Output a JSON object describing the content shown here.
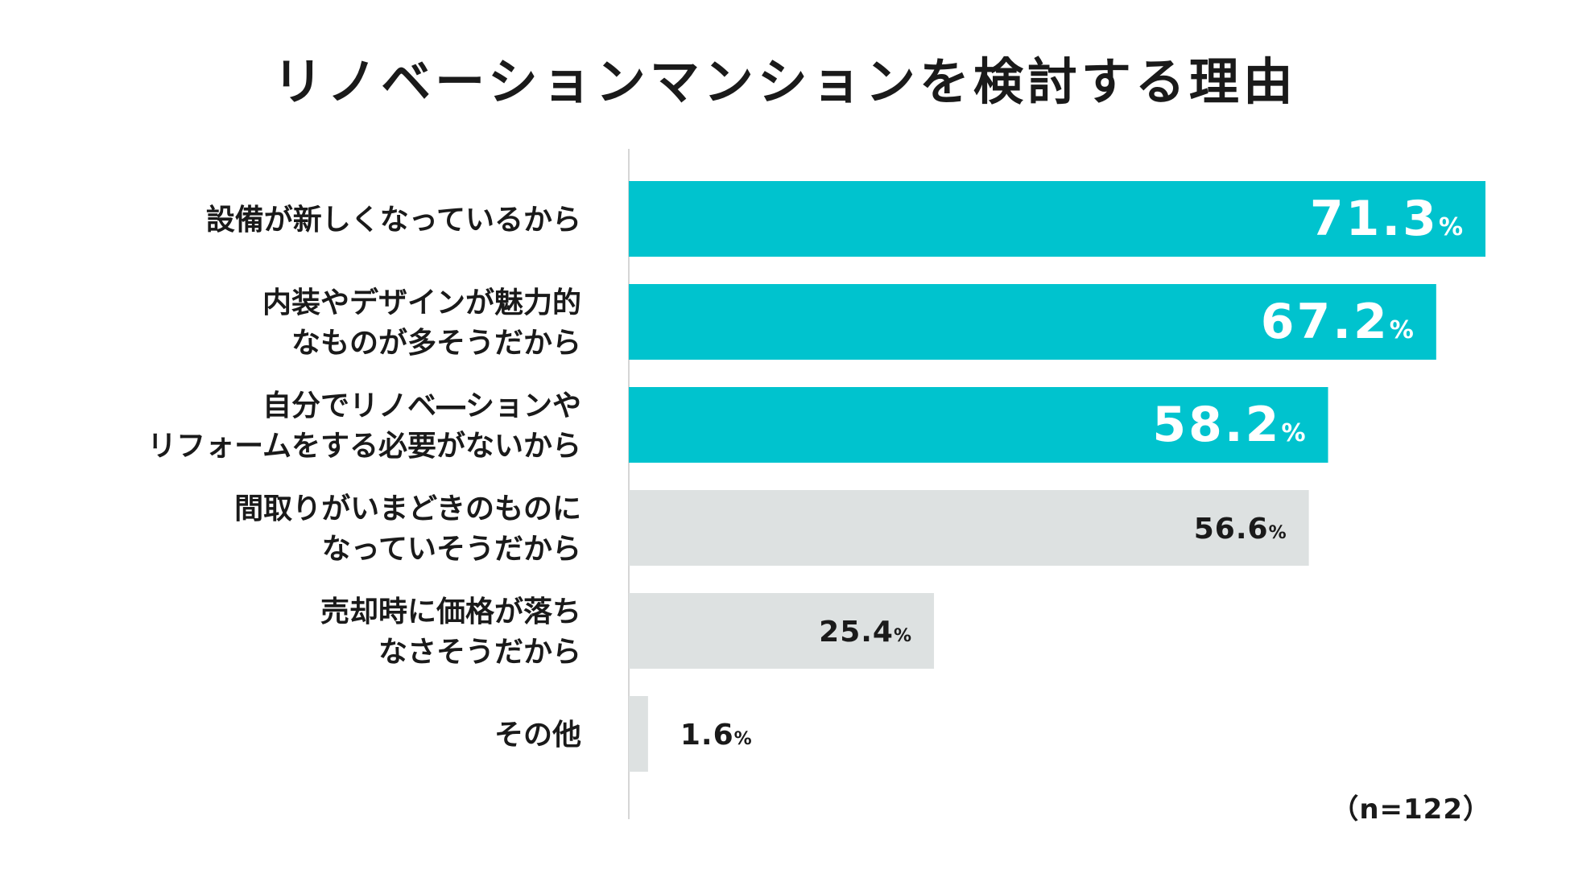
{
  "chart_data": {
    "type": "bar",
    "orientation": "horizontal",
    "title": "リノベーションマンションを検討する理由",
    "categories": [
      "設備が新しくなっているから",
      "内装やデザインが魅力的\nなものが多そうだから",
      "自分でリノベ―ションや\nリフォームをする必要がないから",
      "間取りがいまどきのものに\nなっていそうだから",
      "売却時に価格が落ち\nなさそうだから",
      "その他"
    ],
    "values": [
      71.3,
      67.2,
      58.2,
      56.6,
      25.4,
      1.6
    ],
    "unit": "%",
    "highlighted": [
      true,
      true,
      true,
      false,
      false,
      false
    ],
    "xlim": [
      0,
      71.3
    ],
    "grid": false,
    "legend": "none",
    "note": "（n=122）",
    "colors": {
      "highlight": "#00c3ce",
      "normal": "#dde1e1",
      "axis": "#d6d6d6",
      "highlight_text": "#ffffff",
      "normal_text": "#1a1a1a"
    }
  }
}
